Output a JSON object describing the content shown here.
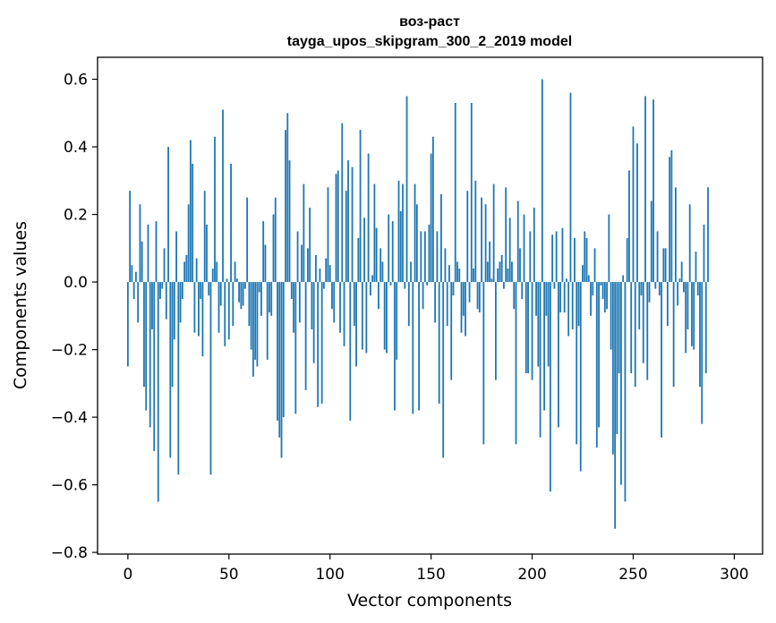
{
  "chart_data": {
    "type": "bar",
    "title": "воз-раст",
    "subtitle": "tayga_upos_skipgram_300_2_2019 model",
    "xlabel": "Vector components",
    "ylabel": "Components values",
    "xlim": [
      -15,
      314
    ],
    "ylim": [
      -0.805,
      0.665
    ],
    "xticks": [
      0,
      50,
      100,
      150,
      200,
      250,
      300
    ],
    "xtick_labels": [
      "0",
      "50",
      "100",
      "150",
      "200",
      "250",
      "300"
    ],
    "yticks": [
      -0.8,
      -0.6,
      -0.4,
      -0.2,
      0.0,
      0.2,
      0.4,
      0.6
    ],
    "ytick_labels": [
      "−0.8",
      "−0.6",
      "−0.4",
      "−0.2",
      "0.0",
      "0.2",
      "0.4",
      "0.6"
    ],
    "grid": false,
    "bar_color": "#1f77b4",
    "values": [
      -0.25,
      0.27,
      0.05,
      -0.05,
      0.03,
      -0.12,
      0.23,
      0.12,
      -0.31,
      -0.38,
      0.17,
      -0.43,
      -0.14,
      -0.5,
      0.18,
      -0.65,
      -0.05,
      -0.02,
      0.1,
      -0.11,
      0.4,
      -0.52,
      -0.31,
      -0.17,
      0.15,
      -0.57,
      -0.12,
      -0.05,
      0.06,
      0.08,
      0.23,
      0.42,
      0.35,
      -0.15,
      0.07,
      -0.16,
      -0.05,
      -0.22,
      0.27,
      0.17,
      -0.04,
      -0.57,
      0.04,
      0.43,
      0.06,
      -0.15,
      -0.07,
      0.51,
      -0.19,
      0.01,
      -0.17,
      0.35,
      -0.13,
      0.06,
      0.01,
      -0.06,
      -0.08,
      -0.07,
      -0.02,
      0.25,
      -0.13,
      -0.2,
      -0.28,
      -0.23,
      -0.25,
      -0.03,
      -0.1,
      0.18,
      0.11,
      -0.23,
      -0.09,
      -0.1,
      0.2,
      0.25,
      -0.41,
      -0.46,
      -0.52,
      -0.4,
      0.45,
      0.5,
      0.36,
      -0.05,
      -0.15,
      -0.39,
      0.15,
      -0.12,
      0.11,
      0.29,
      -0.32,
      0.1,
      0.22,
      -0.14,
      -0.24,
      0.08,
      -0.37,
      0.04,
      -0.36,
      -0.02,
      0.07,
      0.28,
      0.05,
      -0.08,
      -0.12,
      0.32,
      0.33,
      -0.15,
      0.47,
      -0.19,
      0.27,
      0.36,
      -0.41,
      0.34,
      -0.13,
      -0.25,
      0.13,
      0.45,
      -0.2,
      0.19,
      -0.21,
      0.38,
      -0.04,
      0.02,
      0.29,
      0.16,
      -0.08,
      0.1,
      0.06,
      -0.2,
      -0.21,
      0.2,
      -0.01,
      0.18,
      -0.38,
      -0.23,
      0.3,
      0.21,
      0.29,
      -0.02,
      0.55,
      -0.13,
      0.06,
      -0.39,
      0.29,
      0.23,
      -0.38,
      0.15,
      -0.08,
      0.15,
      -0.01,
      0.17,
      0.38,
      0.43,
      -0.12,
      0.15,
      -0.36,
      0.26,
      -0.52,
      0.1,
      -0.13,
      0.05,
      -0.29,
      -0.04,
      0.53,
      0.06,
      0.04,
      -0.15,
      -0.1,
      -0.16,
      0.27,
      -0.06,
      0.53,
      0.04,
      0.3,
      -0.08,
      -0.09,
      0.25,
      -0.48,
      0.23,
      0.06,
      0.12,
      0.01,
      0.29,
      -0.29,
      0.04,
      0.06,
      0.08,
      -0.02,
      0.28,
      0.04,
      0.19,
      0.06,
      -0.08,
      -0.48,
      0.24,
      0.1,
      -0.05,
      0.2,
      -0.27,
      -0.27,
      0.15,
      -0.29,
      0.22,
      -0.1,
      -0.25,
      -0.46,
      0.6,
      -0.38,
      -0.1,
      -0.25,
      -0.62,
      0.14,
      -0.02,
      0.15,
      -0.43,
      -0.09,
      0.16,
      -0.09,
      0.01,
      -0.16,
      0.56,
      -0.14,
      0.13,
      -0.48,
      -0.13,
      -0.56,
      0.05,
      0.15,
      0.13,
      0.02,
      -0.1,
      -0.04,
      0.1,
      -0.49,
      -0.43,
      -0.01,
      -0.05,
      -0.09,
      -0.08,
      0.2,
      -0.2,
      -0.51,
      -0.73,
      -0.45,
      -0.27,
      -0.6,
      0.02,
      -0.65,
      0.13,
      0.33,
      -0.27,
      0.46,
      -0.31,
      0.41,
      -0.14,
      -0.04,
      -0.24,
      0.55,
      -0.29,
      -0.06,
      0.24,
      0.54,
      -0.02,
      0.15,
      -0.04,
      -0.46,
      0.1,
      0.1,
      -0.13,
      0.37,
      0.39,
      -0.31,
      0.28,
      -0.07,
      0.01,
      0.06,
      -0.03,
      -0.21,
      -0.14,
      0.23,
      -0.19,
      -0.2,
      0.09,
      -0.04,
      -0.31,
      -0.42,
      0.17,
      -0.27,
      0.28
    ]
  }
}
